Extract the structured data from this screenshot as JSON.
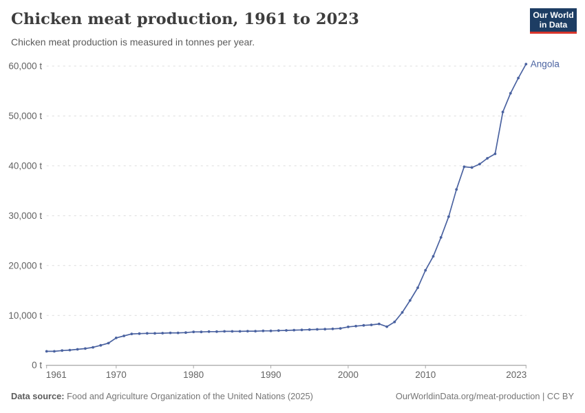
{
  "header": {
    "title": "Chicken meat production, 1961 to 2023",
    "subtitle": "Chicken meat production is measured in tonnes per year.",
    "logo": {
      "line1": "Our World",
      "line2": "in Data"
    }
  },
  "chart_data": {
    "type": "line",
    "title": "Chicken meat production, 1961 to 2023",
    "ylabel": "",
    "xlabel": "",
    "unit": "t",
    "xlim": [
      1961,
      2023
    ],
    "ylim": [
      0,
      60000
    ],
    "x_ticks": [
      1961,
      1970,
      1980,
      1990,
      2000,
      2010,
      2023
    ],
    "y_ticks": [
      0,
      10000,
      20000,
      30000,
      40000,
      50000,
      60000
    ],
    "y_tick_suffix": " t",
    "grid": "horizontal-dashed",
    "legend_position": "end-of-line-label",
    "series": [
      {
        "name": "Angola",
        "color": "#4a62a0",
        "x": [
          1961,
          1962,
          1963,
          1964,
          1965,
          1966,
          1967,
          1968,
          1969,
          1970,
          1971,
          1972,
          1973,
          1974,
          1975,
          1976,
          1977,
          1978,
          1979,
          1980,
          1981,
          1982,
          1983,
          1984,
          1985,
          1986,
          1987,
          1988,
          1989,
          1990,
          1991,
          1992,
          1993,
          1994,
          1995,
          1996,
          1997,
          1998,
          1999,
          2000,
          2001,
          2002,
          2003,
          2004,
          2005,
          2006,
          2007,
          2008,
          2009,
          2010,
          2011,
          2012,
          2013,
          2014,
          2015,
          2016,
          2017,
          2018,
          2019,
          2020,
          2021,
          2022,
          2023
        ],
        "values": [
          2800,
          2800,
          2950,
          3050,
          3200,
          3350,
          3600,
          4000,
          4450,
          5500,
          5900,
          6300,
          6350,
          6400,
          6400,
          6450,
          6500,
          6500,
          6550,
          6700,
          6700,
          6750,
          6750,
          6800,
          6800,
          6800,
          6850,
          6850,
          6900,
          6900,
          6950,
          7000,
          7050,
          7100,
          7150,
          7200,
          7250,
          7300,
          7400,
          7700,
          7850,
          8000,
          8100,
          8300,
          7750,
          8700,
          10600,
          13000,
          15550,
          19050,
          21850,
          25650,
          29800,
          35250,
          39800,
          39650,
          40350,
          41500,
          42400,
          50800,
          54550,
          57600,
          60400
        ]
      }
    ]
  },
  "footer": {
    "datasource_label": "Data source:",
    "datasource_value": "Food and Agriculture Organization of the United Nations (2025)",
    "link": "OurWorldinData.org/meat-production | CC BY"
  },
  "colors": {
    "series": "#4a62a0",
    "grid": "#dcdcdc",
    "axis": "#8f8f8f",
    "tick": "#a8a8a8",
    "tick_label": "#636363",
    "logo_bg": "#1d3d63",
    "logo_accent": "#d8352b"
  }
}
